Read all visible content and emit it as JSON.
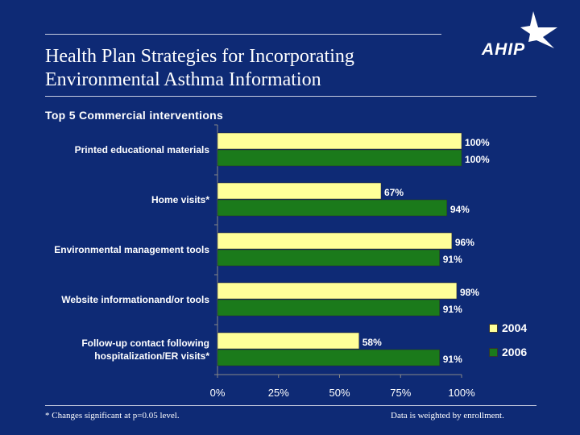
{
  "header": {
    "title_line1": "Health Plan Strategies for Incorporating",
    "title_line2": "Environmental Asthma Information",
    "subtitle": "Top 5 Commercial interventions",
    "logo_text": "AHIP"
  },
  "footer": {
    "left_note": "* Changes significant at p=0.05 level.",
    "right_note": "Data is weighted by enrollment."
  },
  "colors": {
    "background": "#0e2a75",
    "series_2004": "#ffff99",
    "series_2006": "#1b7a1b"
  },
  "chart_data": {
    "type": "bar",
    "orientation": "horizontal",
    "categories": [
      [
        "Printed educational materials"
      ],
      [
        "Home visits*"
      ],
      [
        "Environmental management tools"
      ],
      [
        "Website informationand/or tools"
      ],
      [
        "Follow-up contact following",
        "hospitalization/ER visits*"
      ]
    ],
    "series": [
      {
        "name": "2004",
        "values": [
          100,
          67,
          96,
          98,
          58
        ],
        "labels": [
          "100%",
          "67%",
          "96%",
          "98%",
          "58%"
        ]
      },
      {
        "name": "2006",
        "values": [
          100,
          94,
          91,
          91,
          91
        ],
        "labels": [
          "100%",
          "94%",
          "91%",
          "91%",
          "91%"
        ]
      }
    ],
    "xlim": [
      0,
      100
    ],
    "xticks": [
      0,
      25,
      50,
      75,
      100
    ],
    "xtick_labels": [
      "0%",
      "25%",
      "50%",
      "75%",
      "100%"
    ],
    "legend_position": "right",
    "grid": false
  }
}
